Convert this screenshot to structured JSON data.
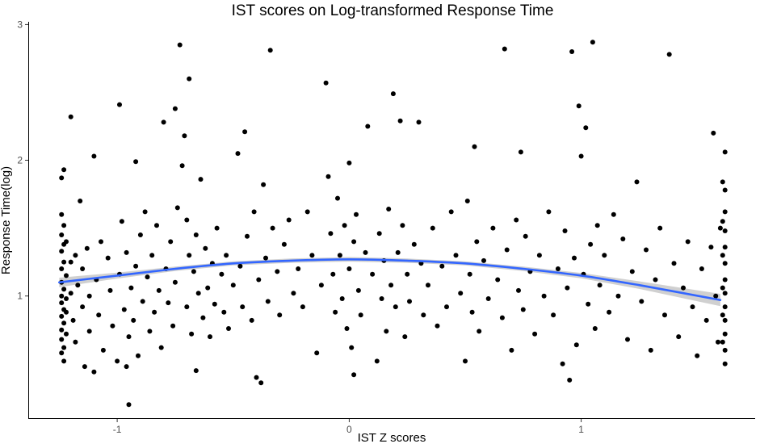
{
  "chart_data": {
    "type": "scatter",
    "title": "IST scores on Log-transformed Response Time",
    "xlabel": "IST Z scores",
    "ylabel": "Response Time(log)",
    "xlim": [
      -1.38,
      1.75
    ],
    "ylim": [
      0.1,
      3.02
    ],
    "x_ticks": [
      -1,
      0,
      1
    ],
    "x_tick_labels": [
      "-1",
      "0",
      "1"
    ],
    "y_ticks": [
      1,
      2,
      3
    ],
    "y_tick_labels": [
      "1",
      "2",
      "3"
    ],
    "grid": false,
    "legend": "none",
    "colors": {
      "points": "#000000",
      "trend": "#3366ff",
      "ribbon": "#c8c8c8"
    },
    "trend": {
      "method": "quadratic fit with confidence band",
      "x": [
        -1.25,
        -1.0,
        -0.75,
        -0.5,
        -0.25,
        0.0,
        0.25,
        0.5,
        0.75,
        1.0,
        1.25,
        1.6
      ],
      "y": [
        1.1,
        1.15,
        1.2,
        1.24,
        1.26,
        1.27,
        1.26,
        1.24,
        1.2,
        1.15,
        1.08,
        0.97
      ],
      "band_halfwidth": [
        0.035,
        0.022,
        0.016,
        0.015,
        0.016,
        0.017,
        0.016,
        0.015,
        0.016,
        0.02,
        0.028,
        0.045
      ]
    },
    "points": [
      [
        -1.24,
        1.87
      ],
      [
        -1.24,
        1.6
      ],
      [
        -1.24,
        1.45
      ],
      [
        -1.24,
        1.33
      ],
      [
        -1.24,
        1.2
      ],
      [
        -1.24,
        1.1
      ],
      [
        -1.24,
        1.0
      ],
      [
        -1.24,
        0.95
      ],
      [
        -1.24,
        0.85
      ],
      [
        -1.24,
        0.75
      ],
      [
        -1.24,
        0.68
      ],
      [
        -1.24,
        0.58
      ],
      [
        -1.23,
        1.93
      ],
      [
        -1.23,
        1.52
      ],
      [
        -1.23,
        1.38
      ],
      [
        -1.23,
        1.25
      ],
      [
        -1.23,
        1.05
      ],
      [
        -1.23,
        0.9
      ],
      [
        -1.23,
        0.8
      ],
      [
        -1.23,
        0.62
      ],
      [
        -1.23,
        0.52
      ],
      [
        -1.22,
        1.4
      ],
      [
        -1.22,
        1.15
      ],
      [
        -1.22,
        0.98
      ],
      [
        -1.22,
        0.88
      ],
      [
        -1.22,
        0.72
      ],
      [
        -1.2,
        2.32
      ],
      [
        -1.2,
        1.25
      ],
      [
        -1.2,
        1.02
      ],
      [
        -1.19,
        0.82
      ],
      [
        -1.18,
        1.3
      ],
      [
        -1.18,
        0.66
      ],
      [
        -1.17,
        1.08
      ],
      [
        -1.16,
        1.7
      ],
      [
        -1.15,
        1.2
      ],
      [
        -1.15,
        0.92
      ],
      [
        -1.14,
        0.48
      ],
      [
        -1.13,
        1.35
      ],
      [
        -1.12,
        1.0
      ],
      [
        -1.12,
        0.74
      ],
      [
        -1.1,
        0.44
      ],
      [
        -1.09,
        1.12
      ],
      [
        -1.08,
        0.86
      ],
      [
        -1.07,
        1.4
      ],
      [
        -1.06,
        0.6
      ],
      [
        -1.04,
        1.28
      ],
      [
        -1.03,
        1.04
      ],
      [
        -1.02,
        0.78
      ],
      [
        -1.0,
        0.52
      ],
      [
        -0.99,
        1.16
      ],
      [
        -0.98,
        1.55
      ],
      [
        -0.97,
        0.9
      ],
      [
        -0.96,
        1.32
      ],
      [
        -0.95,
        0.7
      ],
      [
        -0.94,
        1.06
      ],
      [
        -0.93,
        0.82
      ],
      [
        -0.92,
        1.22
      ],
      [
        -0.91,
        0.56
      ],
      [
        -1.1,
        2.03
      ],
      [
        -0.99,
        2.41
      ],
      [
        -0.92,
        1.99
      ],
      [
        -0.96,
        0.48
      ],
      [
        -0.95,
        0.2
      ],
      [
        -0.9,
        1.45
      ],
      [
        -0.89,
        0.96
      ],
      [
        -0.88,
        1.62
      ],
      [
        -0.87,
        1.14
      ],
      [
        -0.86,
        0.74
      ],
      [
        -0.85,
        1.3
      ],
      [
        -0.84,
        0.88
      ],
      [
        -0.83,
        1.52
      ],
      [
        -0.82,
        1.04
      ],
      [
        -0.81,
        0.62
      ],
      [
        -0.8,
        2.28
      ],
      [
        -0.79,
        1.2
      ],
      [
        -0.78,
        0.95
      ],
      [
        -0.77,
        1.4
      ],
      [
        -0.76,
        0.78
      ],
      [
        -0.75,
        1.1
      ],
      [
        -0.74,
        1.65
      ],
      [
        -0.75,
        2.38
      ],
      [
        -0.73,
        2.85
      ],
      [
        -0.72,
        1.96
      ],
      [
        -0.71,
        2.18
      ],
      [
        -0.69,
        2.6
      ],
      [
        -0.7,
        1.56
      ],
      [
        -0.7,
        0.92
      ],
      [
        -0.69,
        1.3
      ],
      [
        -0.68,
        0.72
      ],
      [
        -0.67,
        1.18
      ],
      [
        -0.66,
        1.45
      ],
      [
        -0.66,
        0.45
      ],
      [
        -0.65,
        1.02
      ],
      [
        -0.64,
        1.86
      ],
      [
        -0.63,
        0.84
      ],
      [
        -0.62,
        1.35
      ],
      [
        -0.61,
        1.06
      ],
      [
        -0.6,
        0.7
      ],
      [
        -0.59,
        1.24
      ],
      [
        -0.58,
        0.94
      ],
      [
        -0.57,
        1.5
      ],
      [
        -0.55,
        1.16
      ],
      [
        -0.54,
        0.88
      ],
      [
        -0.53,
        1.3
      ],
      [
        -0.52,
        0.76
      ],
      [
        -0.5,
        1.08
      ],
      [
        -0.48,
        2.05
      ],
      [
        -0.47,
        1.22
      ],
      [
        -0.46,
        0.92
      ],
      [
        -0.45,
        2.21
      ],
      [
        -0.44,
        1.44
      ],
      [
        -0.42,
        0.82
      ],
      [
        -0.41,
        1.62
      ],
      [
        -0.4,
        0.4
      ],
      [
        -0.39,
        1.12
      ],
      [
        -0.38,
        0.36
      ],
      [
        -0.37,
        1.82
      ],
      [
        -0.36,
        1.28
      ],
      [
        -0.35,
        0.96
      ],
      [
        -0.34,
        2.81
      ],
      [
        -0.33,
        1.5
      ],
      [
        -0.31,
        1.18
      ],
      [
        -0.3,
        0.86
      ],
      [
        -0.28,
        1.38
      ],
      [
        -0.26,
        1.56
      ],
      [
        -0.24,
        1.02
      ],
      [
        -0.22,
        1.2
      ],
      [
        -0.2,
        0.92
      ],
      [
        -0.18,
        1.62
      ],
      [
        -0.16,
        1.3
      ],
      [
        -0.14,
        0.58
      ],
      [
        -0.12,
        1.08
      ],
      [
        -0.1,
        2.57
      ],
      [
        -0.09,
        1.88
      ],
      [
        -0.08,
        1.46
      ],
      [
        -0.07,
        1.16
      ],
      [
        -0.06,
        0.88
      ],
      [
        -0.05,
        1.72
      ],
      [
        -0.04,
        1.3
      ],
      [
        -0.03,
        0.98
      ],
      [
        -0.02,
        1.52
      ],
      [
        -0.01,
        0.76
      ],
      [
        0.0,
        1.98
      ],
      [
        0.0,
        1.2
      ],
      [
        0.01,
        0.62
      ],
      [
        0.02,
        1.4
      ],
      [
        0.02,
        0.42
      ],
      [
        0.03,
        1.6
      ],
      [
        0.04,
        1.04
      ],
      [
        0.05,
        0.86
      ],
      [
        0.07,
        1.32
      ],
      [
        0.08,
        2.25
      ],
      [
        0.1,
        1.16
      ],
      [
        0.12,
        0.52
      ],
      [
        0.13,
        1.46
      ],
      [
        0.14,
        0.98
      ],
      [
        0.15,
        1.26
      ],
      [
        0.16,
        0.74
      ],
      [
        0.17,
        1.64
      ],
      [
        0.18,
        1.08
      ],
      [
        0.19,
        2.49
      ],
      [
        0.2,
        0.92
      ],
      [
        0.21,
        1.32
      ],
      [
        0.22,
        2.29
      ],
      [
        0.23,
        1.52
      ],
      [
        0.24,
        0.7
      ],
      [
        0.25,
        1.16
      ],
      [
        0.26,
        0.96
      ],
      [
        0.28,
        1.38
      ],
      [
        0.3,
        2.28
      ],
      [
        0.31,
        1.24
      ],
      [
        0.32,
        0.86
      ],
      [
        0.34,
        1.08
      ],
      [
        0.36,
        1.5
      ],
      [
        0.38,
        0.78
      ],
      [
        0.4,
        1.22
      ],
      [
        0.42,
        0.92
      ],
      [
        0.44,
        1.62
      ],
      [
        0.46,
        1.3
      ],
      [
        0.48,
        1.02
      ],
      [
        0.5,
        0.52
      ],
      [
        0.51,
        1.7
      ],
      [
        0.52,
        1.16
      ],
      [
        0.53,
        0.88
      ],
      [
        0.54,
        2.1
      ],
      [
        0.55,
        1.4
      ],
      [
        0.56,
        0.74
      ],
      [
        0.58,
        1.26
      ],
      [
        0.6,
        0.98
      ],
      [
        0.62,
        1.5
      ],
      [
        0.64,
        1.12
      ],
      [
        0.66,
        0.84
      ],
      [
        0.67,
        2.82
      ],
      [
        0.68,
        1.34
      ],
      [
        0.7,
        0.6
      ],
      [
        0.72,
        1.56
      ],
      [
        0.73,
        1.04
      ],
      [
        0.74,
        2.06
      ],
      [
        0.75,
        0.9
      ],
      [
        0.76,
        1.44
      ],
      [
        0.78,
        1.18
      ],
      [
        0.8,
        0.72
      ],
      [
        0.82,
        1.3
      ],
      [
        0.84,
        1.0
      ],
      [
        0.86,
        1.62
      ],
      [
        0.88,
        0.86
      ],
      [
        0.9,
        1.2
      ],
      [
        0.92,
        0.5
      ],
      [
        0.93,
        1.48
      ],
      [
        0.94,
        1.06
      ],
      [
        0.95,
        0.38
      ],
      [
        0.96,
        2.8
      ],
      [
        0.97,
        1.28
      ],
      [
        0.98,
        0.64
      ],
      [
        0.99,
        2.4
      ],
      [
        1.0,
        2.03
      ],
      [
        1.01,
        1.16
      ],
      [
        1.02,
        2.24
      ],
      [
        1.03,
        0.94
      ],
      [
        1.04,
        1.38
      ],
      [
        1.05,
        2.87
      ],
      [
        1.06,
        0.76
      ],
      [
        1.07,
        1.52
      ],
      [
        1.08,
        1.08
      ],
      [
        1.1,
        1.3
      ],
      [
        1.12,
        0.88
      ],
      [
        1.14,
        1.6
      ],
      [
        1.16,
        1.0
      ],
      [
        1.18,
        1.42
      ],
      [
        1.2,
        0.68
      ],
      [
        1.22,
        1.18
      ],
      [
        1.24,
        1.84
      ],
      [
        1.26,
        0.96
      ],
      [
        1.28,
        1.34
      ],
      [
        1.3,
        0.6
      ],
      [
        1.32,
        1.12
      ],
      [
        1.34,
        1.5
      ],
      [
        1.36,
        0.86
      ],
      [
        1.38,
        2.78
      ],
      [
        1.4,
        1.24
      ],
      [
        1.42,
        0.7
      ],
      [
        1.44,
        1.06
      ],
      [
        1.46,
        1.4
      ],
      [
        1.48,
        0.92
      ],
      [
        1.5,
        0.56
      ],
      [
        1.52,
        1.2
      ],
      [
        1.54,
        0.82
      ],
      [
        1.56,
        1.36
      ],
      [
        1.57,
        2.2
      ],
      [
        1.58,
        1.0
      ],
      [
        1.59,
        0.66
      ],
      [
        1.6,
        1.5
      ],
      [
        1.62,
        2.06
      ],
      [
        1.62,
        1.78
      ],
      [
        1.62,
        1.62
      ],
      [
        1.62,
        1.48
      ],
      [
        1.62,
        1.36
      ],
      [
        1.62,
        1.24
      ],
      [
        1.62,
        1.12
      ],
      [
        1.62,
        1.02
      ],
      [
        1.62,
        0.92
      ],
      [
        1.62,
        0.82
      ],
      [
        1.62,
        0.72
      ],
      [
        1.62,
        0.6
      ],
      [
        1.62,
        0.5
      ],
      [
        1.61,
        1.84
      ],
      [
        1.61,
        1.55
      ],
      [
        1.61,
        1.3
      ],
      [
        1.61,
        1.06
      ],
      [
        1.61,
        0.86
      ],
      [
        1.61,
        0.66
      ]
    ]
  }
}
